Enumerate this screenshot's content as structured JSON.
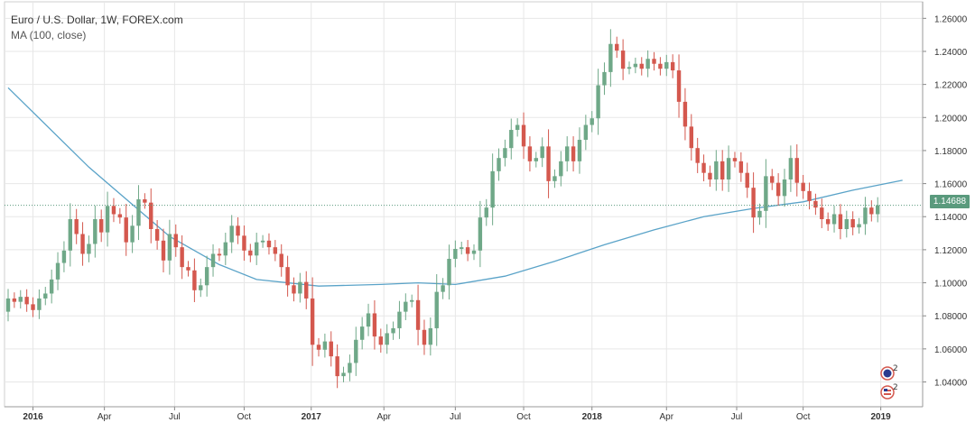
{
  "header": {
    "symbol_title": "Euro / U.S. Dollar, 1W, FOREX.com",
    "indicator_label": "MA (100, close)"
  },
  "last_price_label": "1.14688",
  "event_badge_count": "2",
  "colors": {
    "up": "#6fa888",
    "down": "#d4584e",
    "ma_line": "#5aa3c8",
    "price_line": "#5a9a7d",
    "grid": "#e7e7e7",
    "axis_text": "#333333"
  },
  "chart_data": {
    "type": "candlestick",
    "title": "Euro / U.S. Dollar, 1W, FOREX.com",
    "ylim": [
      1.025,
      1.27
    ],
    "y_ticks": [
      "1.26000",
      "1.24000",
      "1.22000",
      "1.20000",
      "1.18000",
      "1.16000",
      "1.14000",
      "1.12000",
      "1.10000",
      "1.08000",
      "1.06000",
      "1.04000"
    ],
    "x_ticks": [
      "2016",
      "Apr",
      "Jul",
      "Oct",
      "2017",
      "Apr",
      "Jul",
      "Oct",
      "2018",
      "Apr",
      "Jul",
      "Oct",
      "2019"
    ],
    "grid": true,
    "last_price": 1.14688,
    "series": [
      {
        "name": "EURUSD",
        "kind": "candles",
        "close": [
          1.0905,
          1.0885,
          1.0915,
          1.087,
          1.0835,
          1.0905,
          1.0935,
          1.102,
          1.112,
          1.1195,
          1.1385,
          1.1295,
          1.1175,
          1.1235,
          1.1385,
          1.1305,
          1.1465,
          1.1415,
          1.1395,
          1.1245,
          1.1345,
          1.1505,
          1.1485,
          1.1325,
          1.1255,
          1.1135,
          1.1295,
          1.1215,
          1.1095,
          1.1075,
          1.0955,
          1.0985,
          1.1095,
          1.1175,
          1.1165,
          1.1245,
          1.1345,
          1.1285,
          1.1195,
          1.1165,
          1.1245,
          1.1255,
          1.1215,
          1.1175,
          1.1095,
          1.0985,
          1.0935,
          1.1005,
          1.0905,
          1.0625,
          1.0595,
          1.0645,
          1.0555,
          1.0435,
          1.0455,
          1.0515,
          1.0655,
          1.0735,
          1.0815,
          1.0675,
          1.0625,
          1.0695,
          1.0725,
          1.0825,
          1.0885,
          1.0895,
          1.0715,
          1.0625,
          1.0725,
          1.0945,
          1.0985,
          1.1145,
          1.1205,
          1.1215,
          1.1175,
          1.1195,
          1.1395,
          1.1455,
          1.1675,
          1.1755,
          1.1815,
          1.1925,
          1.1955,
          1.1825,
          1.1735,
          1.1755,
          1.1825,
          1.1615,
          1.1645,
          1.1735,
          1.1825,
          1.1735,
          1.1865,
          1.1955,
          1.1995,
          1.2195,
          1.2275,
          1.2445,
          1.2405,
          1.2295,
          1.2305,
          1.2325,
          1.2295,
          1.2355,
          1.2325,
          1.2295,
          1.2335,
          1.2285,
          1.2095,
          1.1945,
          1.1815,
          1.1725,
          1.1665,
          1.1625,
          1.1735,
          1.1625,
          1.1755,
          1.1735,
          1.1665,
          1.1575,
          1.1395,
          1.1435,
          1.1645,
          1.1605,
          1.1525,
          1.1625,
          1.1755,
          1.1605,
          1.1555,
          1.1495,
          1.1455,
          1.1385,
          1.1355,
          1.1415,
          1.1325,
          1.1385,
          1.1335,
          1.1355,
          1.1455,
          1.1415,
          1.1469
        ],
        "up_color": "#6fa888",
        "down_color": "#d4584e"
      },
      {
        "name": "MA (100, close)",
        "kind": "line",
        "points": [
          [
            0,
            1.218
          ],
          [
            13,
            1.17
          ],
          [
            26,
            1.128
          ],
          [
            34,
            1.111
          ],
          [
            40,
            1.102
          ],
          [
            50,
            1.098
          ],
          [
            60,
            1.099
          ],
          [
            66,
            1.1
          ],
          [
            72,
            1.099
          ],
          [
            80,
            1.104
          ],
          [
            88,
            1.113
          ],
          [
            96,
            1.123
          ],
          [
            104,
            1.132
          ],
          [
            112,
            1.14
          ],
          [
            120,
            1.145
          ],
          [
            128,
            1.149
          ],
          [
            136,
            1.156
          ],
          [
            144,
            1.162
          ]
        ],
        "color": "#5aa3c8"
      }
    ]
  }
}
